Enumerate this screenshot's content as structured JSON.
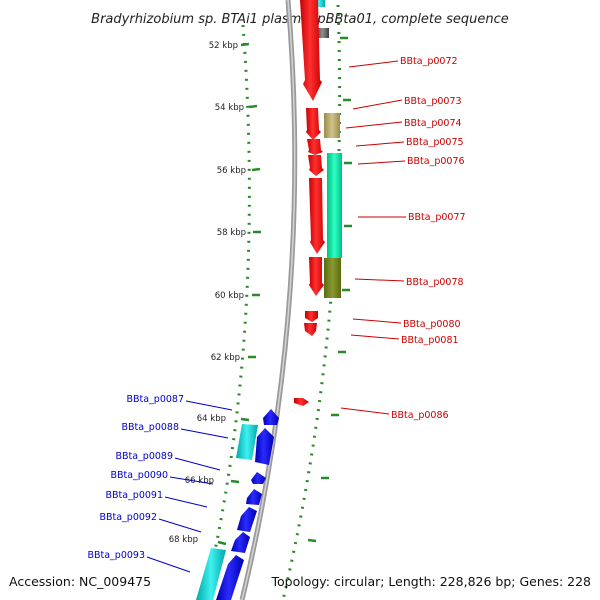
{
  "title": "Bradyrhizobium sp. BTAi1 plasmid pBBta01, complete sequence",
  "footer": {
    "accession": "Accession: NC_009475",
    "info": "Topology: circular; Length: 228,826 bp; Genes: 228"
  },
  "kbp_ticks": [
    "52 kbp",
    "54 kbp",
    "56 kbp",
    "58 kbp",
    "60 kbp",
    "62 kbp",
    "64 kbp",
    "66 kbp",
    "68 kbp"
  ],
  "genes_right": [
    "BBta_p0072",
    "BBta_p0073",
    "BBta_p0074",
    "BBta_p0075",
    "BBta_p0076",
    "BBta_p0077",
    "BBta_p0078",
    "BBta_p0080",
    "BBta_p0081",
    "BBta_p0086"
  ],
  "genes_left": [
    "BBta_p0087",
    "BBta_p0088",
    "BBta_p0089",
    "BBta_p0090",
    "BBta_p0091",
    "BBta_p0092",
    "BBta_p0093"
  ],
  "colors": {
    "backbone": "#8a8a8a",
    "dots": "#2a8a2a",
    "gene_red": "#ff0000",
    "gene_blue": "#0000ee",
    "gene_cyan": "#00cccc",
    "gene_spring": "#00e6a0",
    "gene_olive": "#6b7a1a",
    "gene_khaki": "#b8aa70",
    "label_red": "#cc0000",
    "label_blue": "#0000cc"
  }
}
